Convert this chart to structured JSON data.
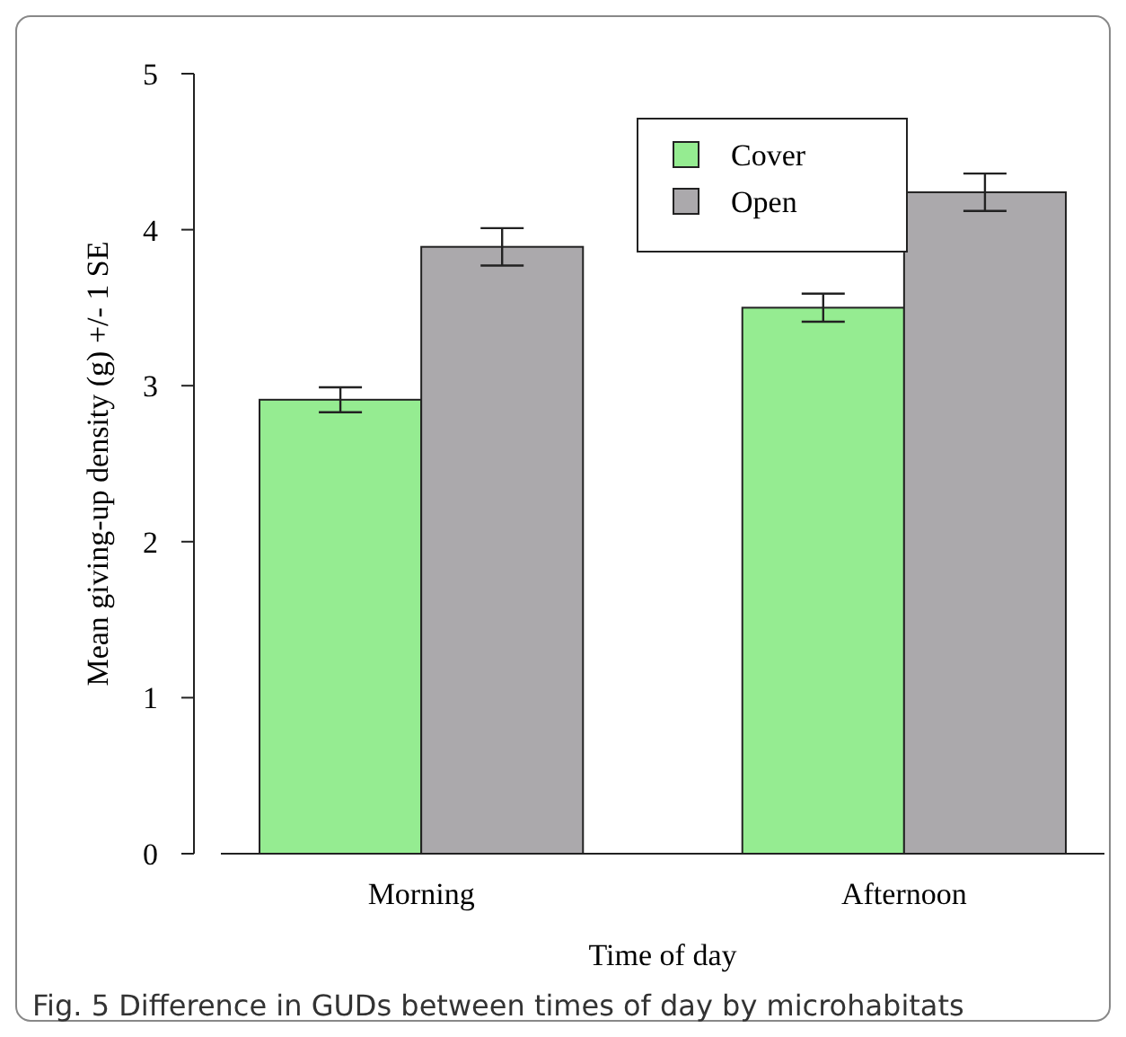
{
  "chart_data": {
    "type": "bar",
    "xlabel": "Time of day",
    "ylabel": "Mean giving-up density (g) +/- 1 SE",
    "categories": [
      "Morning",
      "Afternoon"
    ],
    "series": [
      {
        "name": "Cover",
        "color": "#95ec91",
        "values": [
          2.91,
          3.5
        ],
        "errors": [
          0.08,
          0.09
        ]
      },
      {
        "name": "Open",
        "color": "#aba9ac",
        "values": [
          3.89,
          4.24
        ],
        "errors": [
          0.12,
          0.12
        ]
      }
    ],
    "ylim": [
      0,
      5
    ],
    "yticks": [
      0,
      1,
      2,
      3,
      4,
      5
    ],
    "legend": "top",
    "annotations": [
      "Fig. 5  Difference in GUDs between times of day by microhabitats"
    ]
  }
}
